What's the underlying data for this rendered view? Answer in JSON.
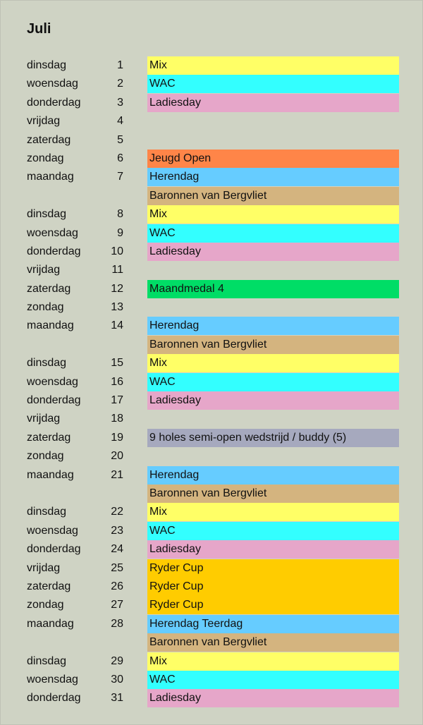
{
  "title": "Juli",
  "colors": {
    "Mix": "#ffff66",
    "WAC": "#33ffff",
    "Ladiesday": "#e6a6c9",
    "Jeugd Open": "#ff8548",
    "Herendag": "#66ccff",
    "Baronnen": "#d4b47f",
    "Maandmedal": "#00dd66",
    "Buddy": "#a6a9be",
    "Ryder": "#ffcc00"
  },
  "rows": [
    {
      "day": "dinsdag",
      "num": "1",
      "event": "Mix",
      "color": "#ffff66"
    },
    {
      "day": "woensdag",
      "num": "2",
      "event": "WAC",
      "color": "#33ffff"
    },
    {
      "day": "donderdag",
      "num": "3",
      "event": "Ladiesday",
      "color": "#e6a6c9"
    },
    {
      "day": "vrijdag",
      "num": "4",
      "event": "",
      "color": ""
    },
    {
      "day": "zaterdag",
      "num": "5",
      "event": "",
      "color": ""
    },
    {
      "day": "zondag",
      "num": "6",
      "event": "Jeugd Open",
      "color": "#ff8548"
    },
    {
      "day": "maandag",
      "num": "7",
      "event": "Herendag",
      "color": "#66ccff"
    },
    {
      "day": "",
      "num": "",
      "event": "Baronnen van Bergvliet",
      "color": "#d4b47f"
    },
    {
      "day": "dinsdag",
      "num": "8",
      "event": "Mix",
      "color": "#ffff66"
    },
    {
      "day": "woensdag",
      "num": "9",
      "event": "WAC",
      "color": "#33ffff"
    },
    {
      "day": "donderdag",
      "num": "10",
      "event": "Ladiesday",
      "color": "#e6a6c9"
    },
    {
      "day": "vrijdag",
      "num": "11",
      "event": "",
      "color": ""
    },
    {
      "day": "zaterdag",
      "num": "12",
      "event": "Maandmedal 4",
      "color": "#00dd66"
    },
    {
      "day": "zondag",
      "num": "13",
      "event": "",
      "color": ""
    },
    {
      "day": "maandag",
      "num": "14",
      "event": "Herendag",
      "color": "#66ccff"
    },
    {
      "day": "",
      "num": "",
      "event": "Baronnen van Bergvliet",
      "color": "#d4b47f"
    },
    {
      "day": "dinsdag",
      "num": "15",
      "event": "Mix",
      "color": "#ffff66"
    },
    {
      "day": "woensdag",
      "num": "16",
      "event": "WAC",
      "color": "#33ffff"
    },
    {
      "day": "donderdag",
      "num": "17",
      "event": "Ladiesday",
      "color": "#e6a6c9"
    },
    {
      "day": "vrijdag",
      "num": "18",
      "event": "",
      "color": ""
    },
    {
      "day": "zaterdag",
      "num": "19",
      "event": "9 holes semi-open wedstrijd / buddy (5)",
      "color": "#a6a9be"
    },
    {
      "day": "zondag",
      "num": "20",
      "event": "",
      "color": ""
    },
    {
      "day": "maandag",
      "num": "21",
      "event": "Herendag",
      "color": "#66ccff"
    },
    {
      "day": "",
      "num": "",
      "event": "Baronnen van Bergvliet",
      "color": "#d4b47f"
    },
    {
      "day": "dinsdag",
      "num": "22",
      "event": "Mix",
      "color": "#ffff66"
    },
    {
      "day": "woensdag",
      "num": "23",
      "event": "WAC",
      "color": "#33ffff"
    },
    {
      "day": "donderdag",
      "num": "24",
      "event": "Ladiesday",
      "color": "#e6a6c9"
    },
    {
      "day": "vrijdag",
      "num": "25",
      "event": "Ryder Cup",
      "color": "#ffcc00"
    },
    {
      "day": "zaterdag",
      "num": "26",
      "event": "Ryder Cup",
      "color": "#ffcc00"
    },
    {
      "day": "zondag",
      "num": "27",
      "event": "Ryder Cup",
      "color": "#ffcc00"
    },
    {
      "day": "maandag",
      "num": "28",
      "event": "Herendag Teerdag",
      "color": "#66ccff"
    },
    {
      "day": "",
      "num": "",
      "event": "Baronnen van Bergvliet",
      "color": "#d4b47f"
    },
    {
      "day": "dinsdag",
      "num": "29",
      "event": "Mix",
      "color": "#ffff66"
    },
    {
      "day": "woensdag",
      "num": "30",
      "event": "WAC",
      "color": "#33ffff"
    },
    {
      "day": "donderdag",
      "num": "31",
      "event": "Ladiesday",
      "color": "#e6a6c9"
    }
  ]
}
